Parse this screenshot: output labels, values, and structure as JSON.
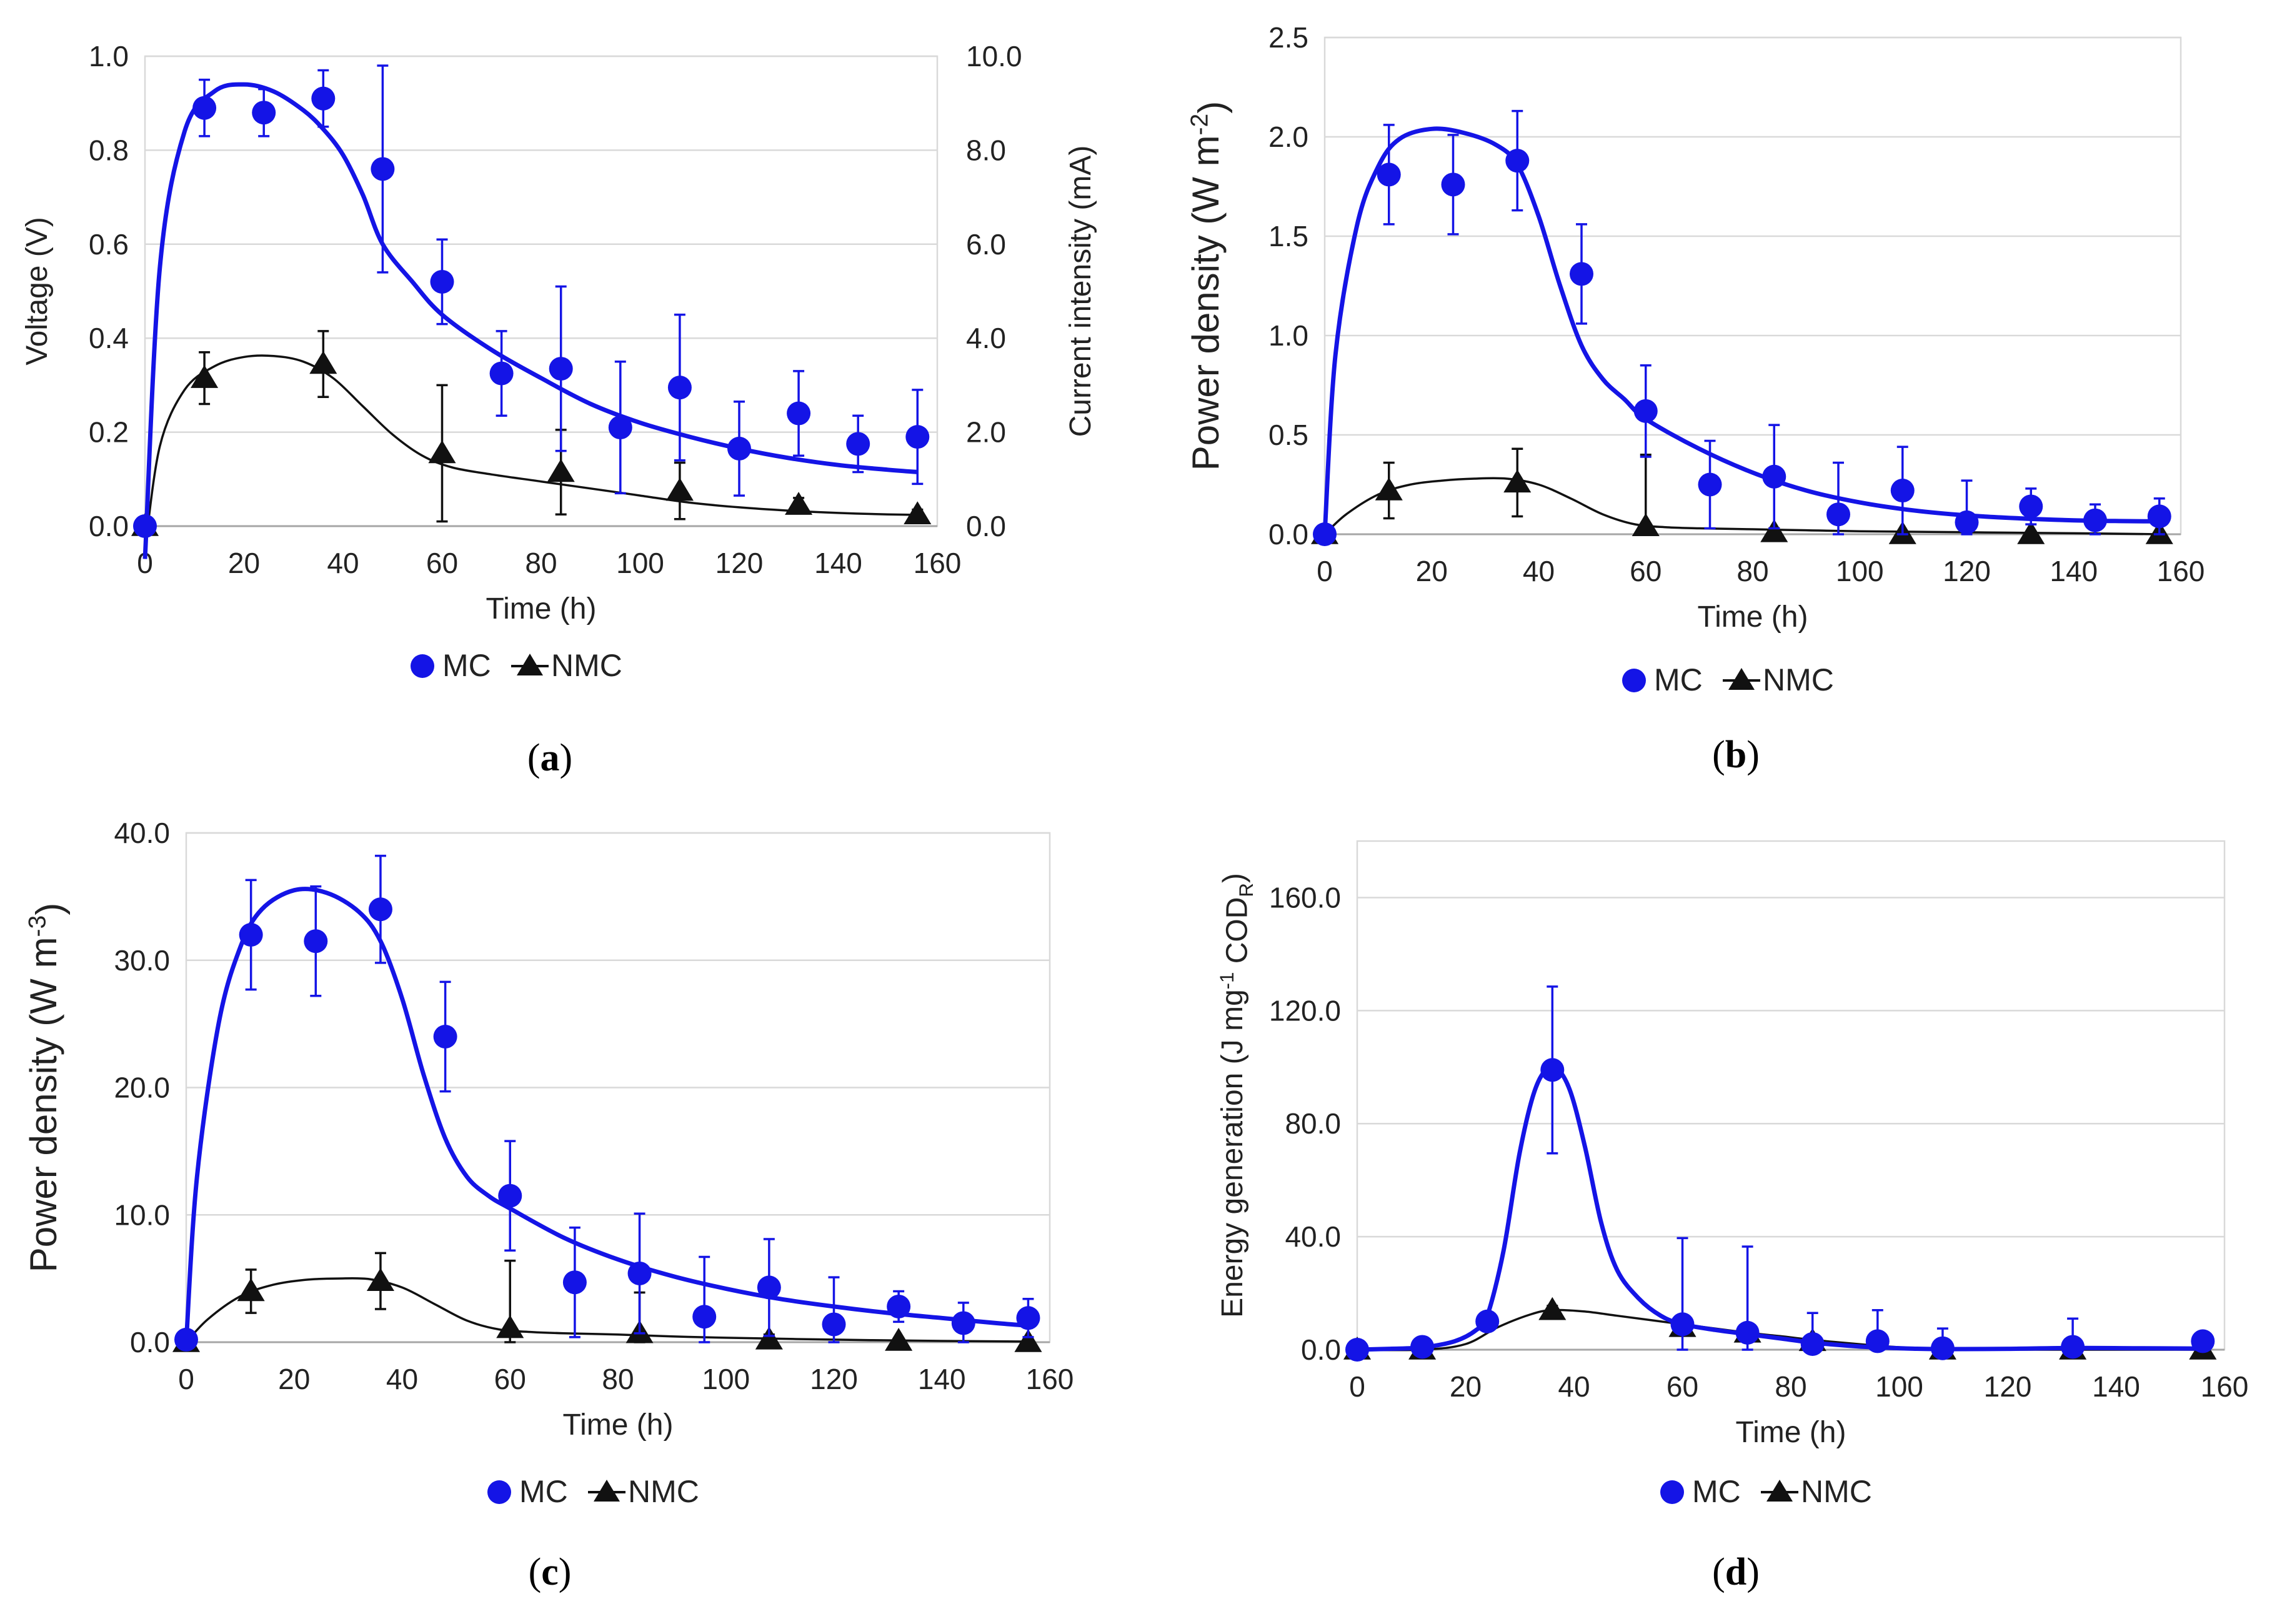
{
  "colors": {
    "mc": "#1414e6",
    "nmc": "#111111"
  },
  "chart_data": [
    {
      "id": "a",
      "type": "scatter",
      "panel_label": "(a)",
      "xlabel": "Time (h)",
      "ylabel": "Voltage (V)",
      "y2label": "Current intensity (mA)",
      "xlim": [
        0,
        160
      ],
      "xticks": [
        0,
        20,
        40,
        60,
        80,
        100,
        120,
        140,
        160
      ],
      "xtick_labels": [
        "0",
        "20",
        "40",
        "60",
        "80",
        "100",
        "120",
        "140",
        "160"
      ],
      "ylim": [
        0,
        1
      ],
      "yticks": [
        0,
        0.2,
        0.4,
        0.6,
        0.8,
        1.0
      ],
      "ytick_labels": [
        "0.0",
        "0.2",
        "0.4",
        "0.6",
        "0.8",
        "1.0"
      ],
      "y2lim": [
        0,
        10
      ],
      "y2ticks": [
        0,
        2,
        4,
        6,
        8,
        10
      ],
      "y2tick_labels": [
        "0.0",
        "2.0",
        "4.0",
        "6.0",
        "8.0",
        "10.0"
      ],
      "legend": [
        "MC",
        "NMC"
      ],
      "series": [
        {
          "name": "MC",
          "marker": "circle",
          "x": [
            0,
            12,
            24,
            36,
            48,
            60,
            72,
            84,
            96,
            108,
            120,
            132,
            144,
            156
          ],
          "y": [
            0.0,
            0.89,
            0.88,
            0.91,
            0.76,
            0.52,
            0.325,
            0.335,
            0.21,
            0.295,
            0.165,
            0.24,
            0.175,
            0.19
          ],
          "err": [
            0.01,
            0.06,
            0.05,
            0.06,
            0.22,
            0.09,
            0.09,
            0.175,
            0.14,
            0.155,
            0.1,
            0.09,
            0.06,
            0.1
          ],
          "fit_x": [
            0,
            3,
            8,
            14,
            20,
            26,
            32,
            36,
            40,
            44,
            48,
            54,
            60,
            70,
            80,
            90,
            100,
            110,
            120,
            130,
            140,
            150,
            156
          ],
          "fit_y": [
            -0.07,
            0.55,
            0.84,
            0.925,
            0.94,
            0.925,
            0.885,
            0.845,
            0.79,
            0.705,
            0.6,
            0.52,
            0.45,
            0.375,
            0.315,
            0.26,
            0.22,
            0.19,
            0.165,
            0.145,
            0.13,
            0.12,
            0.115
          ]
        },
        {
          "name": "NMC",
          "marker": "triangle",
          "x": [
            0,
            12,
            36,
            60,
            84,
            108,
            132,
            156
          ],
          "y": [
            0.0,
            0.315,
            0.345,
            0.155,
            0.115,
            0.075,
            0.045,
            0.025
          ],
          "err": [
            0.01,
            0.055,
            0.07,
            0.145,
            0.09,
            0.06,
            0.015,
            0.01
          ],
          "fit_x": [
            0,
            3,
            8,
            14,
            20,
            26,
            32,
            38,
            44,
            50,
            56,
            62,
            70,
            80,
            90,
            100,
            110,
            120,
            130,
            140,
            150,
            156
          ],
          "fit_y": [
            -0.05,
            0.17,
            0.29,
            0.34,
            0.36,
            0.362,
            0.35,
            0.315,
            0.255,
            0.195,
            0.15,
            0.125,
            0.11,
            0.095,
            0.08,
            0.065,
            0.05,
            0.04,
            0.033,
            0.028,
            0.025,
            0.024
          ]
        }
      ]
    },
    {
      "id": "b",
      "type": "scatter",
      "panel_label": "(b)",
      "xlabel": "Time (h)",
      "ylabel": "Power density (W m",
      "ylabel_sup": "-2",
      "ylabel_end": ")",
      "xlim": [
        0,
        160
      ],
      "xticks": [
        0,
        20,
        40,
        60,
        80,
        100,
        120,
        140,
        160
      ],
      "xtick_labels": [
        "0",
        "20",
        "40",
        "60",
        "80",
        "100",
        "120",
        "140",
        "160"
      ],
      "ylim": [
        0,
        2.5
      ],
      "yticks": [
        0,
        0.5,
        1.0,
        1.5,
        2.0,
        2.5
      ],
      "ytick_labels": [
        "0.0",
        "0.5",
        "1.0",
        "1.5",
        "2.0",
        "2.5"
      ],
      "legend": [
        "MC",
        "NMC"
      ],
      "series": [
        {
          "name": "MC",
          "marker": "circle",
          "x": [
            0,
            12,
            24,
            36,
            48,
            60,
            72,
            84,
            96,
            108,
            120,
            132,
            144,
            156
          ],
          "y": [
            0.0,
            1.81,
            1.76,
            1.88,
            1.31,
            0.62,
            0.25,
            0.29,
            0.1,
            0.22,
            0.06,
            0.14,
            0.07,
            0.09
          ],
          "err": [
            0.02,
            0.25,
            0.25,
            0.25,
            0.25,
            0.23,
            0.22,
            0.26,
            0.26,
            0.22,
            0.21,
            0.09,
            0.08,
            0.09
          ],
          "fit_x": [
            0,
            2,
            6,
            10,
            14,
            20,
            26,
            32,
            36,
            40,
            44,
            48,
            52,
            56,
            60,
            70,
            80,
            90,
            100,
            110,
            120,
            130,
            140,
            150,
            156
          ],
          "fit_y": [
            0.0,
            0.9,
            1.55,
            1.85,
            1.99,
            2.04,
            2.02,
            1.96,
            1.86,
            1.6,
            1.25,
            0.95,
            0.78,
            0.68,
            0.58,
            0.43,
            0.31,
            0.22,
            0.16,
            0.12,
            0.095,
            0.08,
            0.07,
            0.066,
            0.065
          ]
        },
        {
          "name": "NMC",
          "marker": "triangle",
          "x": [
            0,
            12,
            36,
            60,
            84,
            108,
            132,
            156
          ],
          "y": [
            0.0,
            0.22,
            0.26,
            0.04,
            0.01,
            0.0,
            0.0,
            0.0
          ],
          "err": [
            0.02,
            0.14,
            0.17,
            0.36,
            0.02,
            0.01,
            0.01,
            0.01
          ],
          "fit_x": [
            0,
            4,
            10,
            16,
            22,
            28,
            34,
            40,
            46,
            52,
            58,
            64,
            70,
            80,
            90,
            100,
            120,
            140,
            156
          ],
          "fit_y": [
            0.0,
            0.1,
            0.2,
            0.25,
            0.27,
            0.28,
            0.28,
            0.25,
            0.18,
            0.1,
            0.05,
            0.035,
            0.03,
            0.025,
            0.02,
            0.015,
            0.01,
            0.005,
            0.0
          ]
        }
      ]
    },
    {
      "id": "c",
      "type": "scatter",
      "panel_label": "(c)",
      "xlabel": "Time (h)",
      "ylabel": "Power density (W m",
      "ylabel_sup": "-3",
      "ylabel_end": ")",
      "xlim": [
        0,
        160
      ],
      "xticks": [
        0,
        20,
        40,
        60,
        80,
        100,
        120,
        140,
        160
      ],
      "xtick_labels": [
        "0",
        "20",
        "40",
        "60",
        "80",
        "100",
        "120",
        "140",
        "160"
      ],
      "ylim": [
        0,
        40
      ],
      "yticks": [
        0,
        10,
        20,
        30,
        40
      ],
      "ytick_labels": [
        "0.0",
        "10.0",
        "20.0",
        "30.0",
        "40.0"
      ],
      "legend": [
        "MC",
        "NMC"
      ],
      "series": [
        {
          "name": "MC",
          "marker": "circle",
          "x": [
            0,
            12,
            24,
            36,
            48,
            60,
            72,
            84,
            96,
            108,
            120,
            132,
            144,
            156
          ],
          "y": [
            0.2,
            32.0,
            31.5,
            34.0,
            24.0,
            11.5,
            4.7,
            5.4,
            2.0,
            4.3,
            1.4,
            2.8,
            1.5,
            1.9
          ],
          "err": [
            0.2,
            4.3,
            4.3,
            4.2,
            4.3,
            4.3,
            4.3,
            4.7,
            4.7,
            3.8,
            3.7,
            1.2,
            1.6,
            1.5
          ],
          "fit_x": [
            0,
            2,
            6,
            10,
            14,
            20,
            26,
            32,
            36,
            40,
            44,
            48,
            52,
            56,
            60,
            70,
            80,
            90,
            100,
            110,
            120,
            130,
            140,
            150,
            156
          ],
          "fit_y": [
            0.0,
            13.0,
            25.0,
            31.0,
            34.0,
            35.5,
            35.3,
            33.8,
            31.5,
            27.0,
            21.0,
            16.0,
            13.0,
            11.5,
            10.5,
            8.2,
            6.5,
            5.2,
            4.2,
            3.4,
            2.8,
            2.3,
            1.9,
            1.5,
            1.3
          ]
        },
        {
          "name": "NMC",
          "marker": "triangle",
          "x": [
            0,
            12,
            36,
            60,
            84,
            108,
            132,
            156
          ],
          "y": [
            0.0,
            4.0,
            4.8,
            1.1,
            0.7,
            0.2,
            0.1,
            0.0
          ],
          "err": [
            0.2,
            1.7,
            2.2,
            5.3,
            3.2,
            0.4,
            0.2,
            0.2
          ],
          "fit_x": [
            0,
            4,
            10,
            16,
            22,
            28,
            34,
            40,
            46,
            52,
            58,
            64,
            70,
            80,
            90,
            100,
            120,
            140,
            156
          ],
          "fit_y": [
            0.0,
            1.8,
            3.6,
            4.5,
            4.9,
            5.0,
            4.95,
            4.3,
            3.0,
            1.7,
            1.0,
            0.8,
            0.7,
            0.6,
            0.45,
            0.35,
            0.2,
            0.1,
            0.05
          ]
        }
      ]
    },
    {
      "id": "d",
      "type": "scatter",
      "panel_label": "(d)",
      "xlabel": "Time (h)",
      "ylabel": "Energy generation  (J mg",
      "ylabel_sup": "-1",
      "ylabel_mid": " COD",
      "ylabel_sub": "R",
      "ylabel_end": ")",
      "xlim": [
        0,
        160
      ],
      "xticks": [
        0,
        20,
        40,
        60,
        80,
        100,
        120,
        140,
        160
      ],
      "xtick_labels": [
        "0",
        "20",
        "40",
        "60",
        "80",
        "100",
        "120",
        "140",
        "160"
      ],
      "ylim": [
        0,
        180
      ],
      "yticks": [
        0,
        40,
        80,
        120,
        160
      ],
      "ytick_labels": [
        "0.0",
        "40.0",
        "80.0",
        "120.0",
        "160.0"
      ],
      "legend": [
        "MC",
        "NMC"
      ],
      "series": [
        {
          "name": "MC",
          "marker": "circle",
          "x": [
            0,
            12,
            24,
            36,
            60,
            72,
            84,
            96,
            108,
            132,
            156
          ],
          "y": [
            0.0,
            1.0,
            10.0,
            99.0,
            9.0,
            6.0,
            2.0,
            3.0,
            0.5,
            1.0,
            3.0
          ],
          "err": [
            0.5,
            1.0,
            2.0,
            29.5,
            30.5,
            30.5,
            11.0,
            11.0,
            7.0,
            10.0,
            3.0
          ],
          "fit_x": [
            0,
            6,
            12,
            18,
            22,
            24,
            27,
            30,
            33,
            36,
            39,
            42,
            45,
            48,
            52,
            56,
            60,
            66,
            72,
            78,
            84,
            90,
            96,
            102,
            108,
            120,
            132,
            144,
            156
          ],
          "fit_y": [
            0.0,
            0.3,
            0.8,
            3.0,
            7.0,
            12.0,
            35.0,
            70.0,
            93.0,
            100.0,
            93.0,
            72.0,
            45.0,
            28.0,
            18.0,
            12.0,
            9.0,
            7.0,
            5.5,
            4.0,
            2.5,
            1.5,
            0.8,
            0.4,
            0.2,
            0.3,
            0.6,
            0.5,
            0.4
          ]
        },
        {
          "name": "NMC",
          "marker": "triangle",
          "x": [
            0,
            12,
            36,
            60,
            72,
            84,
            108,
            132,
            156
          ],
          "y": [
            0.0,
            0.0,
            14.0,
            8.0,
            6.0,
            3.0,
            0.0,
            0.0,
            0.0
          ],
          "err": [
            0.3,
            0.3,
            1.5,
            1.0,
            1.0,
            2.0,
            0.3,
            0.3,
            0.3
          ],
          "fit_x": [
            0,
            12,
            20,
            26,
            32,
            36,
            42,
            48,
            54,
            60,
            66,
            72,
            78,
            84,
            90,
            96,
            102,
            108,
            120,
            132,
            144,
            156
          ],
          "fit_y": [
            0.0,
            0.0,
            2.0,
            8.0,
            12.5,
            14.0,
            13.5,
            12.0,
            10.5,
            9.0,
            7.5,
            6.0,
            4.8,
            3.5,
            2.4,
            1.4,
            0.6,
            0.0,
            0.0,
            0.0,
            0.0,
            0.0
          ]
        }
      ]
    }
  ]
}
